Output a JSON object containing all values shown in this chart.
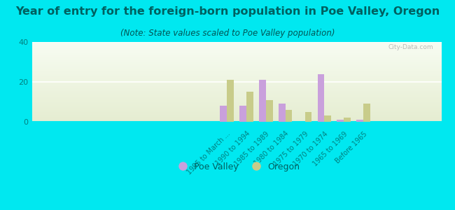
{
  "title": "Year of entry for the foreign-born population in Poe Valley, Oregon",
  "subtitle": "(Note: State values scaled to Poe Valley population)",
  "categories": [
    "1995 to March ...",
    "1990 to 1994",
    "1985 to 1989",
    "1980 to 1984",
    "1975 to 1979",
    "1970 to 1974",
    "1965 to 1969",
    "Before 1965"
  ],
  "poe_valley": [
    8,
    8,
    21,
    9,
    0,
    24,
    1,
    1
  ],
  "oregon": [
    21,
    15,
    11,
    6,
    5,
    3,
    2,
    9
  ],
  "poe_valley_color": "#c9a0dc",
  "oregon_color": "#c8cc8a",
  "background_color": "#00e8f0",
  "plot_bg": "#f0f5e8",
  "ylim": [
    0,
    40
  ],
  "yticks": [
    0,
    20,
    40
  ],
  "bar_width": 0.35,
  "title_fontsize": 11.5,
  "subtitle_fontsize": 8.5,
  "tick_label_fontsize": 7,
  "title_color": "#006060",
  "subtitle_color": "#005555",
  "tick_color": "#008080",
  "watermark": "City-Data.com"
}
